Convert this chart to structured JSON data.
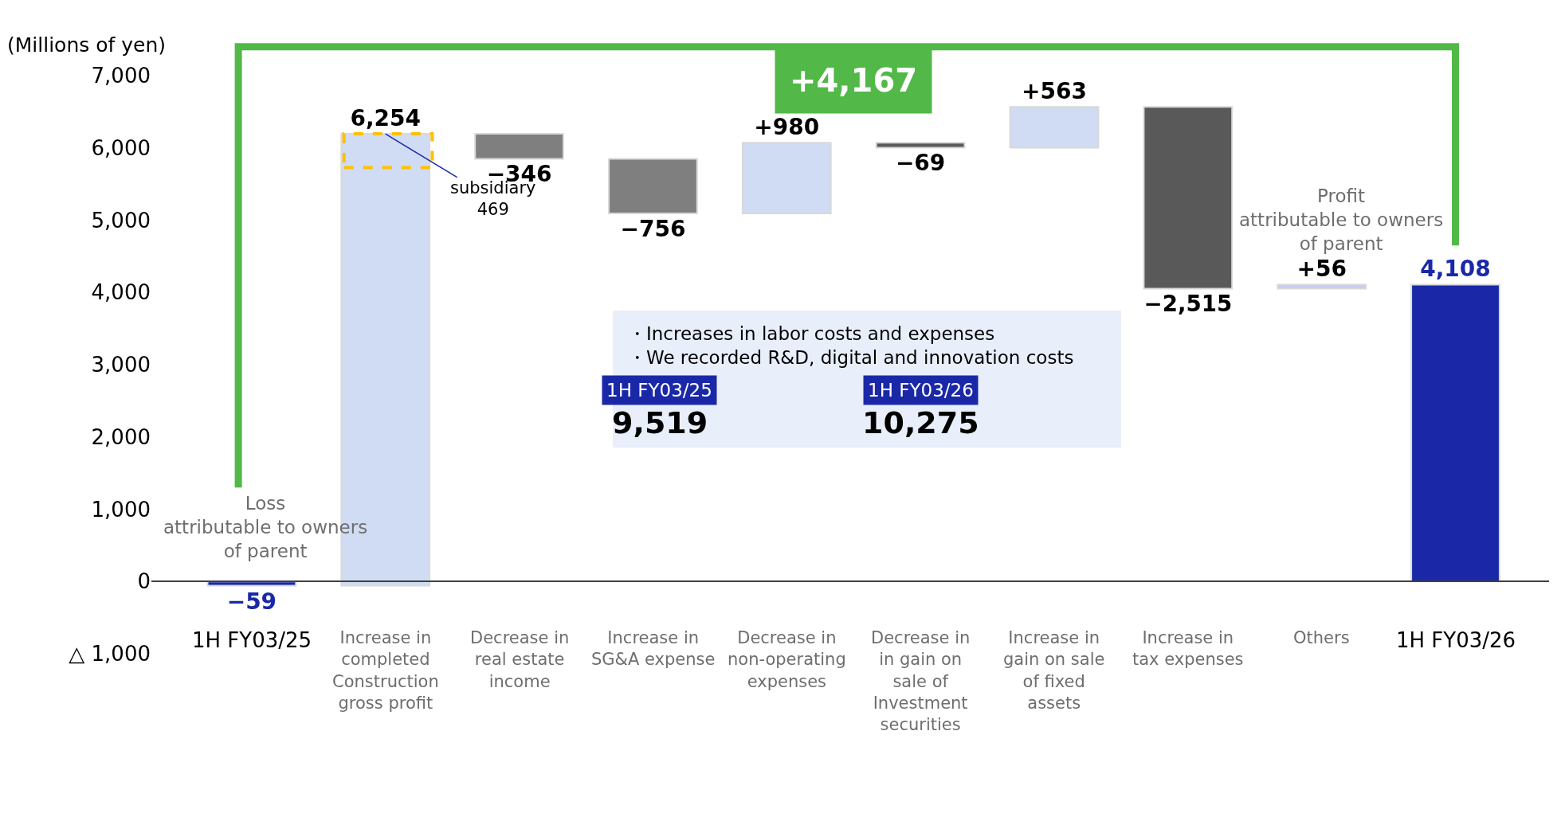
{
  "chart_data": {
    "type": "bar",
    "ylabel": "(Millions of yen)",
    "categories": [
      "1H FY03/25",
      "Increase in completed Construction gross profit",
      "Decrease in real estate income",
      "Increase in SG&A expense",
      "Decrease in non-operating expenses",
      "Decrease in in gain on sale of Investment securities",
      "Increase in gain on sale of fixed assets",
      "Increase in tax expenses",
      "Others",
      "1H FY03/26"
    ],
    "values": [
      -59,
      6254,
      -346,
      -756,
      980,
      -69,
      563,
      -2515,
      56,
      4108
    ],
    "base": [
      0,
      -59,
      6195,
      5849,
      5093,
      6073,
      6004,
      6567,
      4052,
      0
    ],
    "colors": [
      "#1a28a8",
      "#cfdcf3",
      "#7f7f7f",
      "#7f7f7f",
      "#cfdcf3",
      "#595959",
      "#cfdcf3",
      "#595959",
      "#c5cbf5",
      "#1a28a8"
    ],
    "value_labels": [
      "−59",
      "6,254",
      "−346",
      "−756",
      "+980",
      "−69",
      "+563",
      "−2,515",
      "+56",
      "4,108"
    ],
    "ylim": [
      -1000,
      7000
    ],
    "yticks": [
      {
        "value": -1000,
        "label": "△ 1,000"
      },
      {
        "value": 0,
        "label": "0"
      },
      {
        "value": 1000,
        "label": "1,000"
      },
      {
        "value": 2000,
        "label": "2,000"
      },
      {
        "value": 3000,
        "label": "3,000"
      },
      {
        "value": 4000,
        "label": "4,000"
      },
      {
        "value": 5000,
        "label": "5,000"
      },
      {
        "value": 6000,
        "label": "6,000"
      },
      {
        "value": 7000,
        "label": "7,000"
      }
    ],
    "annotations": [
      "+4,167",
      {
        "text": "subsidiary\n469",
        "x": "Increase in completed Construction gross profit",
        "y": 6195
      },
      "Loss\nattributable to owners\nof parent",
      "Profit\nattributable to owners\nof parent",
      "・Increases in labor costs and expenses\n・We recorded R&D, digital and innovation costs",
      "1H FY03/25",
      "9,519",
      "1H FY03/26",
      "10,275"
    ]
  }
}
